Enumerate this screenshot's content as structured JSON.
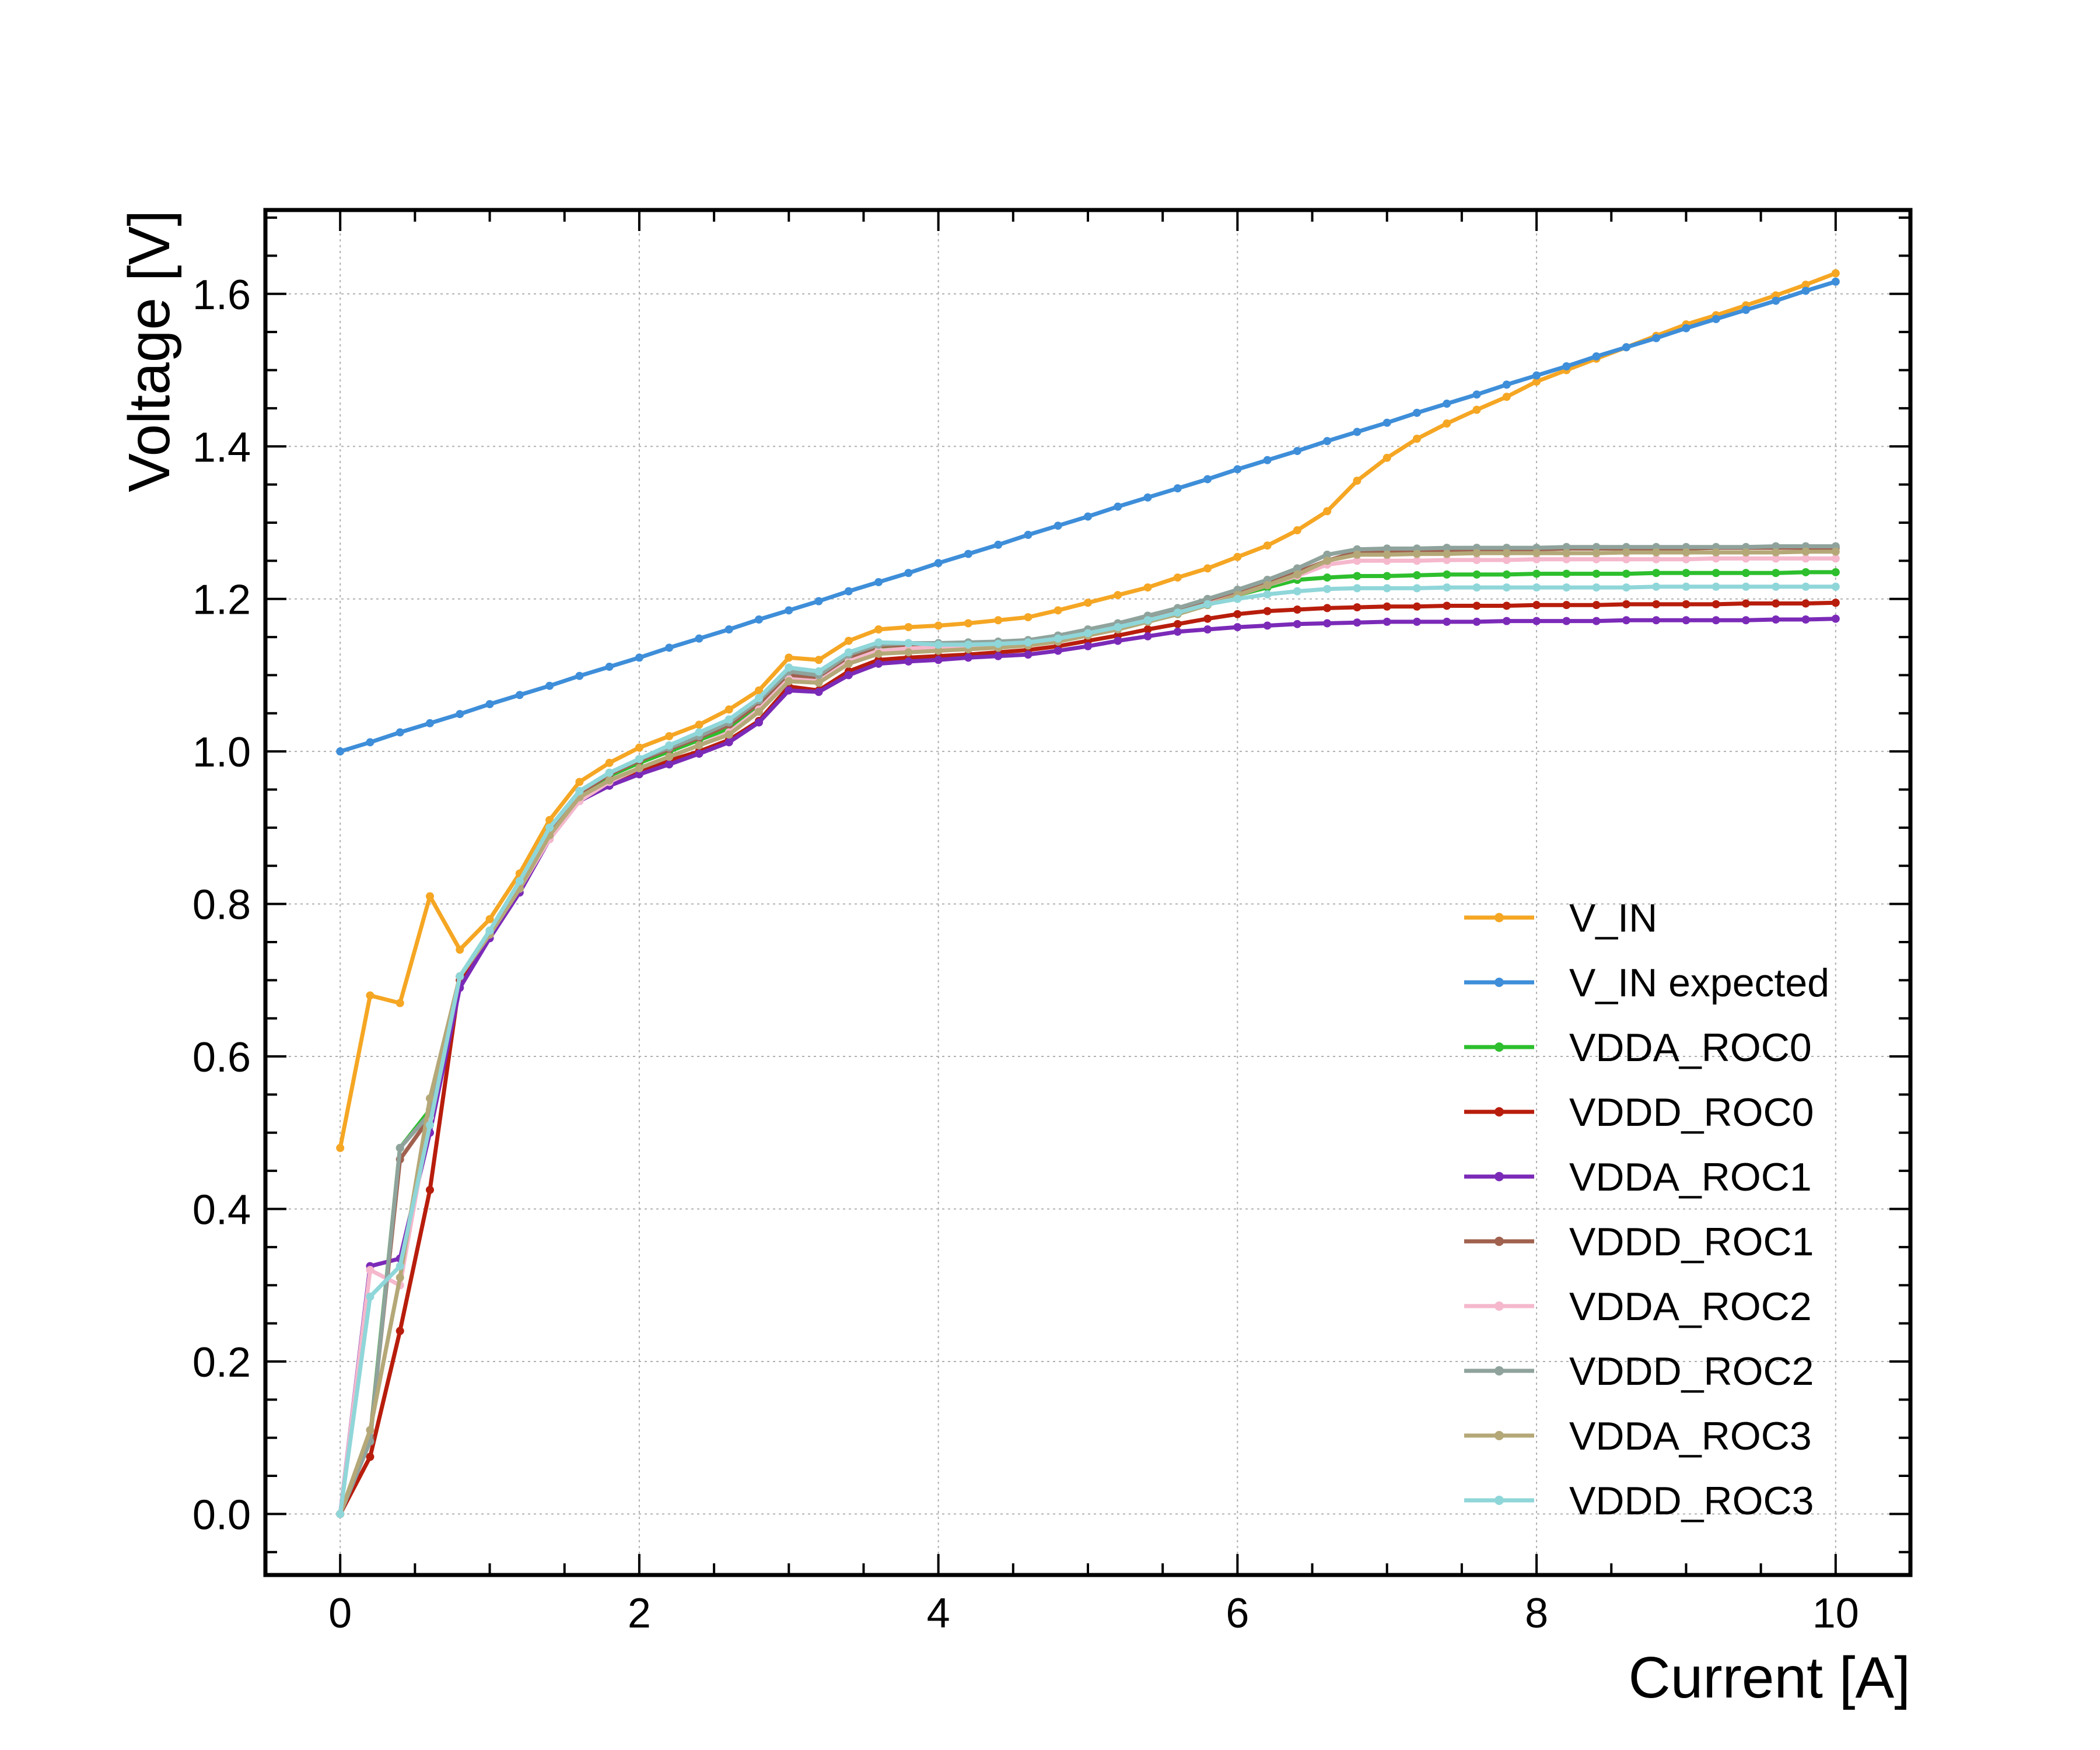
{
  "chart_data": {
    "type": "line",
    "title": "",
    "xlabel": "Current [A]",
    "ylabel": "Voltage [V]",
    "xlim": [
      -0.5,
      10.5
    ],
    "ylim": [
      -0.08,
      1.71
    ],
    "xticks": [
      0,
      2,
      4,
      6,
      8,
      10
    ],
    "yticks": [
      0.0,
      0.2,
      0.4,
      0.6,
      0.8,
      1.0,
      1.2,
      1.4,
      1.6
    ],
    "xtick_labels": [
      "0",
      "2",
      "4",
      "6",
      "8",
      "10"
    ],
    "ytick_labels": [
      "0.0",
      "0.2",
      "0.4",
      "0.6",
      "0.8",
      "1.0",
      "1.2",
      "1.4",
      "1.6"
    ],
    "grid": true,
    "legend_position": "lower-right",
    "x": [
      0,
      0.2,
      0.4,
      0.6,
      0.8,
      1.0,
      1.2,
      1.4,
      1.6,
      1.8,
      2.0,
      2.2,
      2.4,
      2.6,
      2.8,
      3.0,
      3.2,
      3.4,
      3.6,
      3.8,
      4.0,
      4.2,
      4.4,
      4.6,
      4.8,
      5.0,
      5.2,
      5.4,
      5.6,
      5.8,
      6.0,
      6.2,
      6.4,
      6.6,
      6.8,
      7.0,
      7.2,
      7.4,
      7.6,
      7.8,
      8.0,
      8.2,
      8.4,
      8.6,
      8.8,
      9.0,
      9.2,
      9.4,
      9.6,
      9.8,
      10.0
    ],
    "series": [
      {
        "name": "V_IN",
        "color": "#f5a623",
        "values": [
          0.48,
          0.68,
          0.67,
          0.81,
          0.74,
          0.78,
          0.84,
          0.91,
          0.96,
          0.985,
          1.005,
          1.02,
          1.035,
          1.055,
          1.08,
          1.123,
          1.12,
          1.145,
          1.16,
          1.163,
          1.165,
          1.168,
          1.172,
          1.176,
          1.185,
          1.195,
          1.205,
          1.215,
          1.228,
          1.24,
          1.255,
          1.27,
          1.29,
          1.315,
          1.355,
          1.385,
          1.41,
          1.43,
          1.448,
          1.465,
          1.485,
          1.5,
          1.515,
          1.53,
          1.545,
          1.56,
          1.572,
          1.585,
          1.598,
          1.612,
          1.627
        ]
      },
      {
        "name": "V_IN expected",
        "color": "#3e8ed9",
        "values": [
          1.0,
          1.012,
          1.025,
          1.037,
          1.049,
          1.062,
          1.074,
          1.086,
          1.099,
          1.111,
          1.123,
          1.136,
          1.148,
          1.16,
          1.173,
          1.185,
          1.197,
          1.21,
          1.222,
          1.234,
          1.247,
          1.259,
          1.271,
          1.284,
          1.296,
          1.308,
          1.321,
          1.333,
          1.345,
          1.357,
          1.37,
          1.382,
          1.394,
          1.407,
          1.419,
          1.431,
          1.444,
          1.456,
          1.468,
          1.481,
          1.493,
          1.505,
          1.518,
          1.53,
          1.542,
          1.555,
          1.567,
          1.579,
          1.591,
          1.604,
          1.616
        ]
      },
      {
        "name": "VDDA_ROC0",
        "color": "#2dbf2d",
        "values": [
          0.0,
          0.1,
          0.48,
          0.53,
          0.705,
          0.765,
          0.825,
          0.895,
          0.945,
          0.968,
          0.985,
          1.0,
          1.015,
          1.03,
          1.06,
          1.1,
          1.095,
          1.12,
          1.135,
          1.138,
          1.14,
          1.14,
          1.142,
          1.145,
          1.148,
          1.155,
          1.162,
          1.17,
          1.18,
          1.192,
          1.205,
          1.215,
          1.225,
          1.228,
          1.23,
          1.23,
          1.231,
          1.232,
          1.232,
          1.232,
          1.233,
          1.233,
          1.233,
          1.233,
          1.234,
          1.234,
          1.234,
          1.234,
          1.234,
          1.235,
          1.235
        ]
      },
      {
        "name": "VDDD_ROC0",
        "color": "#b81d0c",
        "values": [
          0.0,
          0.075,
          0.24,
          0.425,
          0.7,
          0.76,
          0.82,
          0.89,
          0.94,
          0.96,
          0.975,
          0.988,
          1.0,
          1.015,
          1.04,
          1.085,
          1.08,
          1.105,
          1.12,
          1.123,
          1.125,
          1.127,
          1.13,
          1.133,
          1.138,
          1.145,
          1.152,
          1.16,
          1.167,
          1.174,
          1.18,
          1.184,
          1.186,
          1.188,
          1.189,
          1.19,
          1.19,
          1.191,
          1.191,
          1.191,
          1.192,
          1.192,
          1.192,
          1.193,
          1.193,
          1.193,
          1.193,
          1.194,
          1.194,
          1.194,
          1.195
        ]
      },
      {
        "name": "VDDA_ROC1",
        "color": "#7b2ab8",
        "values": [
          0.0,
          0.325,
          0.335,
          0.5,
          0.69,
          0.755,
          0.815,
          0.885,
          0.935,
          0.955,
          0.97,
          0.983,
          0.997,
          1.012,
          1.038,
          1.08,
          1.078,
          1.1,
          1.115,
          1.118,
          1.12,
          1.123,
          1.125,
          1.127,
          1.132,
          1.138,
          1.145,
          1.151,
          1.157,
          1.16,
          1.163,
          1.165,
          1.167,
          1.168,
          1.169,
          1.17,
          1.17,
          1.17,
          1.17,
          1.171,
          1.171,
          1.171,
          1.171,
          1.172,
          1.172,
          1.172,
          1.172,
          1.172,
          1.173,
          1.173,
          1.174
        ]
      },
      {
        "name": "VDDD_ROC1",
        "color": "#a0614f",
        "values": [
          0.0,
          0.1,
          0.465,
          0.52,
          0.705,
          0.76,
          0.825,
          0.895,
          0.945,
          0.97,
          0.988,
          1.003,
          1.018,
          1.035,
          1.063,
          1.1,
          1.097,
          1.123,
          1.138,
          1.14,
          1.141,
          1.142,
          1.143,
          1.145,
          1.15,
          1.157,
          1.165,
          1.175,
          1.185,
          1.197,
          1.21,
          1.222,
          1.235,
          1.25,
          1.262,
          1.263,
          1.264,
          1.264,
          1.265,
          1.265,
          1.265,
          1.266,
          1.266,
          1.266,
          1.266,
          1.266,
          1.267,
          1.267,
          1.267,
          1.267,
          1.267
        ]
      },
      {
        "name": "VDDA_ROC2",
        "color": "#f5b8cc",
        "values": [
          0.0,
          0.32,
          0.3,
          0.52,
          0.705,
          0.76,
          0.82,
          0.885,
          0.935,
          0.96,
          0.978,
          0.993,
          1.008,
          1.025,
          1.055,
          1.095,
          1.092,
          1.118,
          1.132,
          1.135,
          1.137,
          1.138,
          1.14,
          1.143,
          1.148,
          1.155,
          1.163,
          1.172,
          1.182,
          1.193,
          1.205,
          1.218,
          1.23,
          1.245,
          1.25,
          1.25,
          1.25,
          1.251,
          1.251,
          1.251,
          1.252,
          1.252,
          1.252,
          1.252,
          1.252,
          1.252,
          1.253,
          1.253,
          1.253,
          1.253,
          1.253
        ]
      },
      {
        "name": "VDDD_ROC2",
        "color": "#8fa39c",
        "values": [
          0.0,
          0.095,
          0.48,
          0.525,
          0.705,
          0.762,
          0.825,
          0.9,
          0.948,
          0.972,
          0.99,
          1.005,
          1.02,
          1.038,
          1.067,
          1.105,
          1.1,
          1.127,
          1.14,
          1.142,
          1.142,
          1.143,
          1.144,
          1.146,
          1.152,
          1.16,
          1.168,
          1.178,
          1.188,
          1.2,
          1.212,
          1.225,
          1.24,
          1.258,
          1.265,
          1.266,
          1.266,
          1.267,
          1.267,
          1.267,
          1.267,
          1.268,
          1.268,
          1.268,
          1.268,
          1.268,
          1.268,
          1.268,
          1.269,
          1.269,
          1.269
        ]
      },
      {
        "name": "VDDA_ROC3",
        "color": "#b5a878",
        "values": [
          0.0,
          0.11,
          0.31,
          0.545,
          0.705,
          0.76,
          0.82,
          0.89,
          0.94,
          0.962,
          0.978,
          0.993,
          1.008,
          1.022,
          1.052,
          1.092,
          1.09,
          1.115,
          1.128,
          1.13,
          1.132,
          1.134,
          1.136,
          1.139,
          1.144,
          1.152,
          1.16,
          1.17,
          1.18,
          1.192,
          1.205,
          1.218,
          1.232,
          1.25,
          1.258,
          1.258,
          1.259,
          1.259,
          1.26,
          1.26,
          1.26,
          1.26,
          1.26,
          1.261,
          1.261,
          1.261,
          1.261,
          1.261,
          1.261,
          1.262,
          1.262
        ]
      },
      {
        "name": "VDDD_ROC3",
        "color": "#8fd6d9",
        "values": [
          0.0,
          0.285,
          0.325,
          0.51,
          0.705,
          0.765,
          0.83,
          0.9,
          0.948,
          0.972,
          0.99,
          1.008,
          1.025,
          1.042,
          1.07,
          1.11,
          1.105,
          1.13,
          1.143,
          1.142,
          1.14,
          1.14,
          1.141,
          1.143,
          1.148,
          1.155,
          1.163,
          1.172,
          1.182,
          1.193,
          1.2,
          1.206,
          1.21,
          1.213,
          1.214,
          1.214,
          1.214,
          1.215,
          1.215,
          1.215,
          1.215,
          1.215,
          1.215,
          1.215,
          1.216,
          1.216,
          1.216,
          1.216,
          1.216,
          1.216,
          1.216
        ]
      }
    ]
  }
}
